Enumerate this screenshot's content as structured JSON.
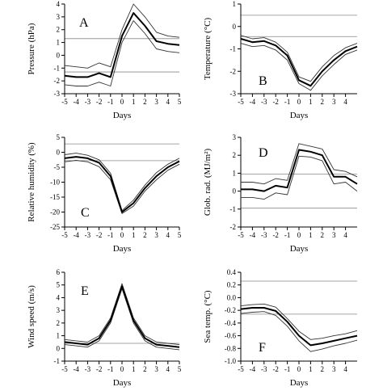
{
  "chart_data": [
    {
      "type": "line",
      "panel_label": "A",
      "xlabel": "Days",
      "ylabel": "Pressure (hPa)",
      "x": [
        -5,
        -4,
        -3,
        -2,
        -1,
        0,
        1,
        2,
        3,
        4,
        5
      ],
      "xticks": [
        "-5",
        "-4",
        "-3",
        "-2",
        "-1",
        "0",
        "1",
        "2",
        "3",
        "4",
        "5"
      ],
      "yticks": [
        "-3",
        "-2",
        "-1",
        "0",
        "1",
        "2",
        "3",
        "4"
      ],
      "ylim": [
        -3,
        4
      ],
      "reference_lines": [
        1.3,
        -1.3
      ],
      "series": [
        {
          "role": "mean",
          "values": [
            -1.6,
            -1.7,
            -1.7,
            -1.4,
            -1.7,
            1.5,
            3.3,
            2.3,
            1.1,
            0.9,
            0.8
          ]
        },
        {
          "role": "upper",
          "values": [
            -0.8,
            -0.9,
            -1.0,
            -0.6,
            -0.9,
            2.0,
            4.0,
            3.0,
            1.8,
            1.5,
            1.4
          ]
        },
        {
          "role": "lower",
          "values": [
            -2.3,
            -2.4,
            -2.4,
            -2.1,
            -2.4,
            1.0,
            2.7,
            1.7,
            0.5,
            0.3,
            0.2
          ]
        }
      ]
    },
    {
      "type": "line",
      "panel_label": "B",
      "xlabel": "Days",
      "ylabel": "Temperature (°C)",
      "x": [
        -5,
        -4,
        -3,
        -2,
        -1,
        0,
        1,
        2,
        3,
        4,
        5
      ],
      "xticks": [
        "-5",
        "-4",
        "-3",
        "-2",
        "-1",
        "0",
        "1",
        "2",
        "3",
        "4"
      ],
      "yticks": [
        "-3",
        "-2",
        "-1",
        "0",
        "1"
      ],
      "ylim": [
        -3,
        1
      ],
      "reference_lines": [
        0.5,
        -0.45
      ],
      "series": [
        {
          "role": "mean",
          "values": [
            -0.55,
            -0.7,
            -0.65,
            -0.85,
            -1.3,
            -2.4,
            -2.65,
            -2.0,
            -1.5,
            -1.1,
            -0.9
          ]
        },
        {
          "role": "upper",
          "values": [
            -0.4,
            -0.55,
            -0.5,
            -0.7,
            -1.15,
            -2.25,
            -2.45,
            -1.8,
            -1.3,
            -0.95,
            -0.75
          ]
        },
        {
          "role": "lower",
          "values": [
            -0.75,
            -0.9,
            -0.85,
            -1.05,
            -1.5,
            -2.55,
            -2.85,
            -2.2,
            -1.7,
            -1.25,
            -1.05
          ]
        }
      ]
    },
    {
      "type": "line",
      "panel_label": "C",
      "xlabel": "Days",
      "ylabel": "Relative humidity (%)",
      "x": [
        -5,
        -4,
        -3,
        -2,
        -1,
        0,
        1,
        2,
        3,
        4,
        5
      ],
      "xticks": [
        "-5",
        "-4",
        "-3",
        "-2",
        "-1",
        "0",
        "1",
        "2",
        "3",
        "4",
        "5"
      ],
      "yticks": [
        "-25",
        "-20",
        "-15",
        "-10",
        "-5",
        "0",
        "5"
      ],
      "ylim": [
        -25,
        5
      ],
      "reference_lines": [
        2.8,
        -2.8
      ],
      "series": [
        {
          "role": "mean",
          "values": [
            -2.0,
            -1.5,
            -2.0,
            -3.5,
            -8.0,
            -20.0,
            -17.0,
            -12.0,
            -8.0,
            -5.0,
            -3.0
          ]
        },
        {
          "role": "upper",
          "values": [
            -0.8,
            -0.3,
            -1.0,
            -2.5,
            -7.0,
            -19.5,
            -16.0,
            -11.0,
            -6.8,
            -4.0,
            -2.0
          ]
        },
        {
          "role": "lower",
          "values": [
            -3.2,
            -2.7,
            -3.2,
            -4.8,
            -9.2,
            -20.5,
            -18.0,
            -13.0,
            -9.2,
            -6.0,
            -4.0
          ]
        }
      ]
    },
    {
      "type": "line",
      "panel_label": "D",
      "xlabel": "Days",
      "ylabel": "Glob. rad. (MJ/m²)",
      "x": [
        -5,
        -4,
        -3,
        -2,
        -1,
        0,
        1,
        2,
        3,
        4,
        5
      ],
      "xticks": [
        "-5",
        "-4",
        "-3",
        "-2",
        "-1",
        "0",
        "1",
        "2",
        "3",
        "4"
      ],
      "yticks": [
        "-2",
        "-1",
        "0",
        "1",
        "2",
        "3"
      ],
      "ylim": [
        -2,
        3
      ],
      "reference_lines": [
        0.95,
        -0.95
      ],
      "series": [
        {
          "role": "mean",
          "values": [
            0.1,
            0.1,
            0.0,
            0.3,
            0.2,
            2.3,
            2.2,
            2.0,
            0.8,
            0.8,
            0.4
          ]
        },
        {
          "role": "upper",
          "values": [
            0.5,
            0.5,
            0.4,
            0.7,
            0.6,
            2.65,
            2.5,
            2.35,
            1.2,
            1.1,
            0.8
          ]
        },
        {
          "role": "lower",
          "values": [
            -0.35,
            -0.35,
            -0.45,
            -0.1,
            -0.2,
            1.95,
            1.9,
            1.7,
            0.4,
            0.5,
            0.0
          ]
        }
      ]
    },
    {
      "type": "line",
      "panel_label": "E",
      "xlabel": "Days",
      "ylabel": "Wind speed (m/s)",
      "x": [
        -5,
        -4,
        -3,
        -2,
        -1,
        0,
        1,
        2,
        3,
        4,
        5
      ],
      "xticks": [
        "-5",
        "-4",
        "-3",
        "-2",
        "-1",
        "0",
        "1",
        "2",
        "3",
        "4",
        "5"
      ],
      "yticks": [
        "-1",
        "0",
        "1",
        "2",
        "3",
        "4",
        "5",
        "6"
      ],
      "ylim": [
        -1,
        6
      ],
      "reference_lines": [
        0.4
      ],
      "series": [
        {
          "role": "mean",
          "values": [
            0.5,
            0.4,
            0.3,
            0.8,
            2.2,
            4.9,
            2.2,
            0.8,
            0.3,
            0.2,
            0.1
          ]
        },
        {
          "role": "upper",
          "values": [
            0.7,
            0.6,
            0.5,
            1.0,
            2.4,
            5.1,
            2.4,
            1.0,
            0.5,
            0.4,
            0.3
          ]
        },
        {
          "role": "lower",
          "values": [
            0.3,
            0.2,
            0.1,
            0.6,
            2.0,
            4.7,
            2.0,
            0.6,
            0.1,
            0.0,
            -0.1
          ]
        }
      ]
    },
    {
      "type": "line",
      "panel_label": "F",
      "xlabel": "Days",
      "ylabel": "Sea temp. (°C)",
      "x": [
        -5,
        -4,
        -3,
        -2,
        -1,
        0,
        1,
        2,
        3,
        4,
        5
      ],
      "xticks": [
        "-5",
        "-4",
        "-3",
        "-2",
        "-1",
        "0",
        "1",
        "2",
        "3",
        "4"
      ],
      "yticks": [
        "-1.0",
        "-0.8",
        "-0.6",
        "-0.4",
        "-0.2",
        "0.0",
        "0.2",
        "0.4"
      ],
      "ylim": [
        -1.0,
        0.4
      ],
      "reference_lines": [
        0.26,
        -0.26
      ],
      "series": [
        {
          "role": "mean",
          "values": [
            -0.18,
            -0.16,
            -0.16,
            -0.21,
            -0.38,
            -0.6,
            -0.75,
            -0.72,
            -0.68,
            -0.64,
            -0.6
          ]
        },
        {
          "role": "upper",
          "values": [
            -0.13,
            -0.11,
            -0.1,
            -0.15,
            -0.33,
            -0.53,
            -0.66,
            -0.64,
            -0.6,
            -0.57,
            -0.52
          ]
        },
        {
          "role": "lower",
          "values": [
            -0.25,
            -0.23,
            -0.22,
            -0.28,
            -0.45,
            -0.68,
            -0.85,
            -0.81,
            -0.76,
            -0.72,
            -0.67
          ]
        }
      ]
    }
  ],
  "colors": {
    "mean_line": "#000000",
    "band_line": "#333333",
    "reference_line": "#888888",
    "axis": "#000000"
  }
}
